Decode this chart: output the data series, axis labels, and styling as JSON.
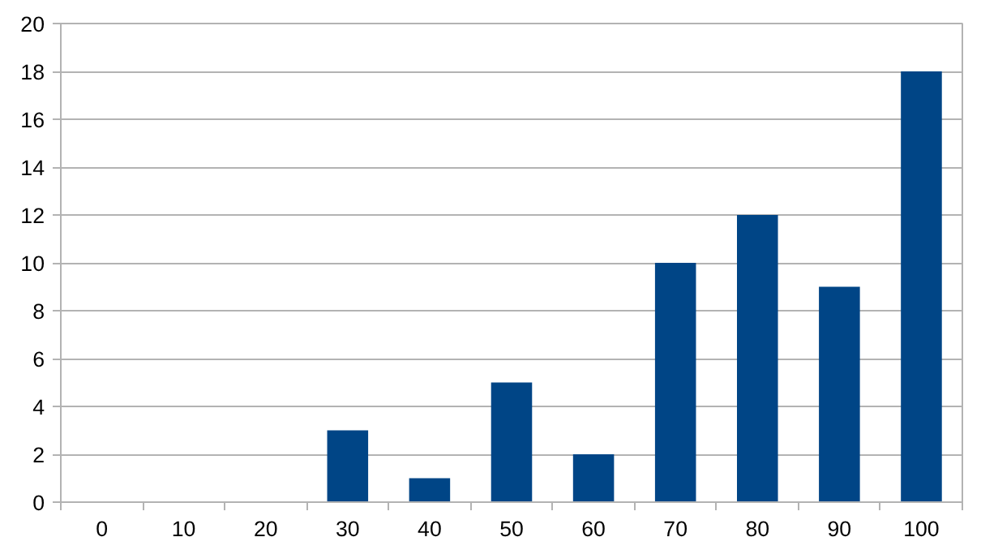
{
  "chart_data": {
    "type": "bar",
    "categories": [
      "0",
      "10",
      "20",
      "30",
      "40",
      "50",
      "60",
      "70",
      "80",
      "90",
      "100"
    ],
    "values": [
      0,
      0,
      0,
      3,
      1,
      5,
      2,
      10,
      12,
      9,
      18
    ],
    "color": "#004586",
    "ylim": [
      0,
      20
    ],
    "yticks": [
      0,
      2,
      4,
      6,
      8,
      10,
      12,
      14,
      16,
      18,
      20
    ],
    "grid": "y"
  }
}
